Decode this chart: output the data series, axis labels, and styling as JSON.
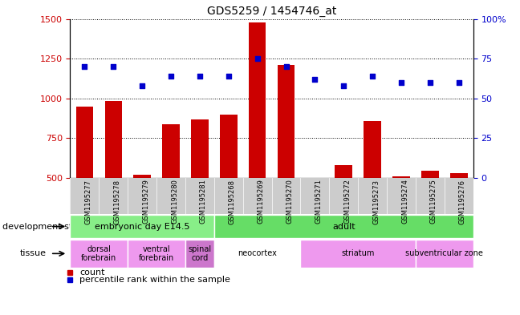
{
  "title": "GDS5259 / 1454746_at",
  "samples": [
    "GSM1195277",
    "GSM1195278",
    "GSM1195279",
    "GSM1195280",
    "GSM1195281",
    "GSM1195268",
    "GSM1195269",
    "GSM1195270",
    "GSM1195271",
    "GSM1195272",
    "GSM1195273",
    "GSM1195274",
    "GSM1195275",
    "GSM1195276"
  ],
  "counts": [
    950,
    985,
    520,
    840,
    870,
    900,
    1480,
    1210,
    500,
    580,
    860,
    510,
    545,
    530
  ],
  "percentiles": [
    70,
    70,
    58,
    64,
    64,
    64,
    75,
    70,
    62,
    58,
    64,
    60,
    60,
    60
  ],
  "y_min": 500,
  "y_max": 1500,
  "y_ticks": [
    500,
    750,
    1000,
    1250,
    1500
  ],
  "y2_ticks": [
    0,
    25,
    50,
    75,
    100
  ],
  "bar_color": "#cc0000",
  "dot_color": "#0000cc",
  "dev_stage_groups": [
    {
      "label": "embryonic day E14.5",
      "start": 0,
      "end": 4,
      "color": "#88ee88"
    },
    {
      "label": "adult",
      "start": 5,
      "end": 13,
      "color": "#66dd66"
    }
  ],
  "tissue_groups": [
    {
      "label": "dorsal\nforebrain",
      "start": 0,
      "end": 1,
      "color": "#ee99ee"
    },
    {
      "label": "ventral\nforebrain",
      "start": 2,
      "end": 3,
      "color": "#ee99ee"
    },
    {
      "label": "spinal\ncord",
      "start": 4,
      "end": 4,
      "color": "#cc77cc"
    },
    {
      "label": "neocortex",
      "start": 5,
      "end": 7,
      "color": "#ffffff"
    },
    {
      "label": "striatum",
      "start": 8,
      "end": 11,
      "color": "#ee99ee"
    },
    {
      "label": "subventricular zone",
      "start": 12,
      "end": 13,
      "color": "#ee99ee"
    }
  ],
  "plot_bg": "#ffffff"
}
